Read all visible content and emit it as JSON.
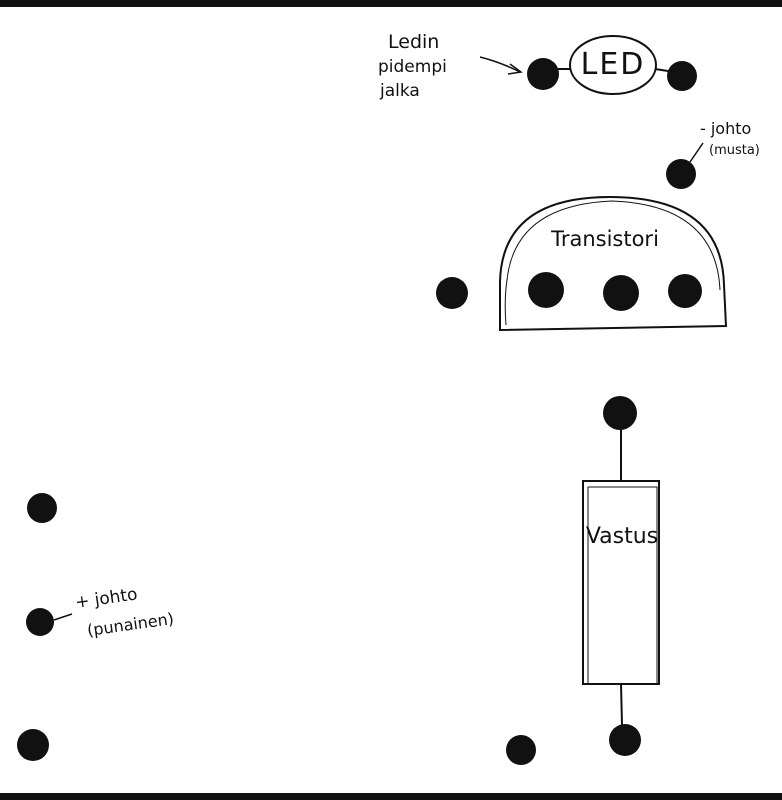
{
  "colors": {
    "ink": "#111111",
    "paper": "#ffffff",
    "edge": "#1a1a1a"
  },
  "led": {
    "label": "LED",
    "note_lines": [
      "Ledin",
      "pidempi",
      "jalka"
    ]
  },
  "negative_wire": {
    "label_lines": [
      "- johto",
      "(musta)"
    ]
  },
  "transistor": {
    "label": "Transistori"
  },
  "resistor": {
    "label": "Vastus"
  },
  "positive_wire": {
    "label_lines": [
      "+ johto",
      "(punainen)"
    ]
  }
}
